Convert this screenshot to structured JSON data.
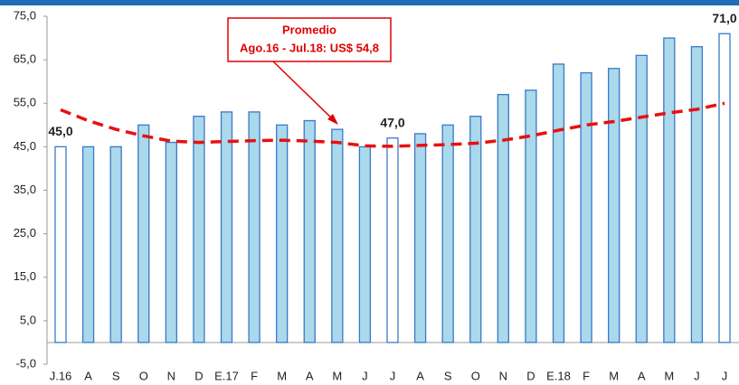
{
  "chart_data": {
    "type": "bar",
    "categories": [
      "J.16",
      "A",
      "S",
      "O",
      "N",
      "D",
      "E.17",
      "F",
      "M",
      "A",
      "M",
      "J",
      "J",
      "A",
      "S",
      "O",
      "N",
      "D",
      "E.18",
      "F",
      "M",
      "A",
      "M",
      "J",
      "J"
    ],
    "values": [
      45,
      45,
      45,
      50,
      46,
      52,
      53,
      53,
      50,
      51,
      49,
      45,
      47,
      48,
      50,
      52,
      57,
      58,
      64,
      62,
      63,
      66,
      70,
      68,
      71
    ],
    "value_labels": [
      "45,0",
      null,
      null,
      null,
      null,
      null,
      null,
      null,
      null,
      null,
      null,
      null,
      "47,0",
      null,
      null,
      null,
      null,
      null,
      null,
      null,
      null,
      null,
      null,
      null,
      "71,0"
    ],
    "colors": [
      "#ffffff",
      "#a9d9eb",
      "#a9d9eb",
      "#a9d9eb",
      "#a9d9eb",
      "#a9d9eb",
      "#a9d9eb",
      "#a9d9eb",
      "#a9d9eb",
      "#a9d9eb",
      "#a9d9eb",
      "#a9d9eb",
      "#ffffff",
      "#a9d9eb",
      "#a9d9eb",
      "#a9d9eb",
      "#a9d9eb",
      "#a9d9eb",
      "#a9d9eb",
      "#a9d9eb",
      "#a9d9eb",
      "#a9d9eb",
      "#a9d9eb",
      "#a9d9eb",
      "#ffffff"
    ],
    "edge_color": "#3b78c9",
    "trend": {
      "color": "#e81010",
      "values": [
        53.5,
        51,
        49,
        47.5,
        46.3,
        46,
        46.2,
        46.4,
        46.5,
        46.3,
        46,
        45.2,
        45.1,
        45.3,
        45.5,
        45.8,
        46.5,
        47.5,
        48.8,
        50,
        50.8,
        51.8,
        52.8,
        53.6,
        55
      ]
    },
    "annotation": {
      "title": "Promedio",
      "text": "Ago.16 - Jul.18: US$ 54,8"
    },
    "ylim": [
      -5,
      75
    ],
    "yticks": [
      {
        "value": -5,
        "label": "-5,0"
      },
      {
        "value": 5,
        "label": "5,0"
      },
      {
        "value": 15,
        "label": "15,0"
      },
      {
        "value": 25,
        "label": "25,0"
      },
      {
        "value": 35,
        "label": "35,0"
      },
      {
        "value": 45,
        "label": "45,0"
      },
      {
        "value": 55,
        "label": "55,0"
      },
      {
        "value": 65,
        "label": "65,0"
      },
      {
        "value": 75,
        "label": "75,0"
      }
    ],
    "grid": false
  }
}
